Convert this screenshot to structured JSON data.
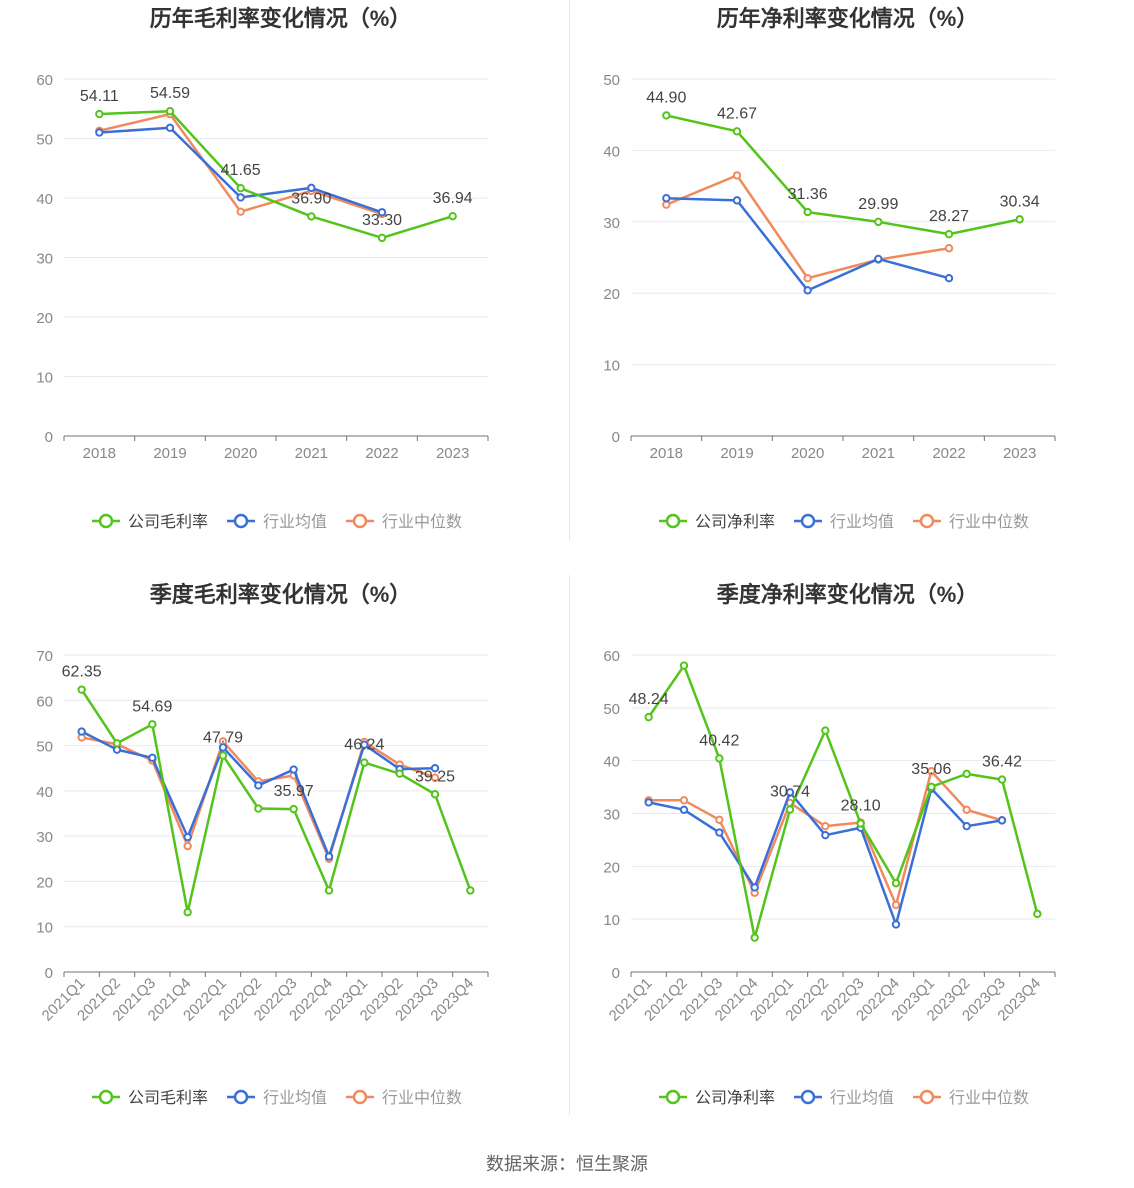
{
  "source_text": "数据来源：恒生聚源",
  "colors": {
    "company": "#52c41a",
    "industry_avg": "#3a6fd8",
    "industry_median": "#f08a5d"
  },
  "chart_data": [
    {
      "type": "line",
      "title": "历年毛利率变化情况（%）",
      "categories": [
        "2018",
        "2019",
        "2020",
        "2021",
        "2022",
        "2023"
      ],
      "ylim": [
        0,
        60
      ],
      "yticks": [
        0,
        10,
        20,
        30,
        40,
        50,
        60
      ],
      "rotate_x": false,
      "legend": [
        "公司毛利率",
        "行业均值",
        "行业中位数"
      ],
      "series": [
        {
          "name": "公司毛利率",
          "values": [
            54.11,
            54.59,
            41.65,
            36.9,
            33.3,
            36.94
          ]
        },
        {
          "name": "行业均值",
          "values": [
            51.0,
            51.8,
            40.1,
            41.7,
            37.6,
            null
          ]
        },
        {
          "name": "行业中位数",
          "values": [
            51.3,
            54.1,
            37.7,
            41.2,
            37.3,
            null
          ]
        }
      ],
      "data_labels": [
        {
          "index": 0,
          "text": "54.11"
        },
        {
          "index": 1,
          "text": "54.59"
        },
        {
          "index": 2,
          "text": "41.65"
        },
        {
          "index": 3,
          "text": "36.90"
        },
        {
          "index": 4,
          "text": "33.30"
        },
        {
          "index": 5,
          "text": "36.94"
        }
      ]
    },
    {
      "type": "line",
      "title": "历年净利率变化情况（%）",
      "categories": [
        "2018",
        "2019",
        "2020",
        "2021",
        "2022",
        "2023"
      ],
      "ylim": [
        0,
        50
      ],
      "yticks": [
        0,
        10,
        20,
        30,
        40,
        50
      ],
      "rotate_x": false,
      "legend": [
        "公司净利率",
        "行业均值",
        "行业中位数"
      ],
      "series": [
        {
          "name": "公司净利率",
          "values": [
            44.9,
            42.67,
            31.36,
            29.99,
            28.27,
            30.34
          ]
        },
        {
          "name": "行业均值",
          "values": [
            33.3,
            33.0,
            20.4,
            24.8,
            22.1,
            null
          ]
        },
        {
          "name": "行业中位数",
          "values": [
            32.4,
            36.5,
            22.1,
            24.7,
            26.3,
            null
          ]
        }
      ],
      "data_labels": [
        {
          "index": 0,
          "text": "44.90"
        },
        {
          "index": 1,
          "text": "42.67"
        },
        {
          "index": 2,
          "text": "31.36"
        },
        {
          "index": 3,
          "text": "29.99"
        },
        {
          "index": 4,
          "text": "28.27"
        },
        {
          "index": 5,
          "text": "30.34"
        }
      ]
    },
    {
      "type": "line",
      "title": "季度毛利率变化情况（%）",
      "categories": [
        "2021Q1",
        "2021Q2",
        "2021Q3",
        "2021Q4",
        "2022Q1",
        "2022Q2",
        "2022Q3",
        "2022Q4",
        "2023Q1",
        "2023Q2",
        "2023Q3",
        "2023Q4"
      ],
      "ylim": [
        0,
        70
      ],
      "yticks": [
        0,
        10,
        20,
        30,
        40,
        50,
        60,
        70
      ],
      "rotate_x": true,
      "legend": [
        "公司毛利率",
        "行业均值",
        "行业中位数"
      ],
      "series": [
        {
          "name": "公司毛利率",
          "values": [
            62.35,
            50.5,
            54.69,
            13.2,
            47.79,
            36.1,
            35.97,
            18.0,
            46.24,
            43.8,
            39.25,
            18.0
          ]
        },
        {
          "name": "行业均值",
          "values": [
            53.1,
            49.1,
            47.3,
            29.8,
            49.6,
            41.2,
            44.7,
            25.5,
            50.2,
            44.8,
            45.0,
            null
          ]
        },
        {
          "name": "行业中位数",
          "values": [
            51.8,
            50.3,
            46.7,
            27.8,
            50.9,
            42.1,
            43.4,
            25.0,
            50.8,
            45.8,
            42.9,
            null
          ]
        }
      ],
      "data_labels": [
        {
          "index": 0,
          "text": "62.35"
        },
        {
          "index": 2,
          "text": "54.69"
        },
        {
          "index": 4,
          "text": "47.79"
        },
        {
          "index": 6,
          "text": "35.97"
        },
        {
          "index": 8,
          "text": "46.24"
        },
        {
          "index": 10,
          "text": "39.25"
        }
      ]
    },
    {
      "type": "line",
      "title": "季度净利率变化情况（%）",
      "categories": [
        "2021Q1",
        "2021Q2",
        "2021Q3",
        "2021Q4",
        "2022Q1",
        "2022Q2",
        "2022Q3",
        "2022Q4",
        "2023Q1",
        "2023Q2",
        "2023Q3",
        "2023Q4"
      ],
      "ylim": [
        0,
        60
      ],
      "yticks": [
        0,
        10,
        20,
        30,
        40,
        50,
        60
      ],
      "rotate_x": true,
      "legend": [
        "公司净利率",
        "行业均值",
        "行业中位数"
      ],
      "series": [
        {
          "name": "公司净利率",
          "values": [
            48.24,
            58.0,
            40.42,
            6.5,
            30.74,
            45.7,
            28.1,
            16.8,
            35.06,
            37.5,
            36.42,
            11.0
          ]
        },
        {
          "name": "行业均值",
          "values": [
            32.1,
            30.7,
            26.4,
            16.0,
            34.0,
            25.9,
            27.3,
            9.0,
            34.7,
            27.6,
            28.7,
            null
          ]
        },
        {
          "name": "行业中位数",
          "values": [
            32.5,
            32.5,
            28.8,
            15.0,
            32.0,
            27.6,
            28.3,
            12.7,
            38.0,
            30.7,
            28.7,
            null
          ]
        }
      ],
      "data_labels": [
        {
          "index": 0,
          "text": "48.24"
        },
        {
          "index": 2,
          "text": "40.42"
        },
        {
          "index": 4,
          "text": "30.74"
        },
        {
          "index": 6,
          "text": "28.10"
        },
        {
          "index": 8,
          "text": "35.06"
        },
        {
          "index": 10,
          "text": "36.42"
        }
      ]
    }
  ]
}
